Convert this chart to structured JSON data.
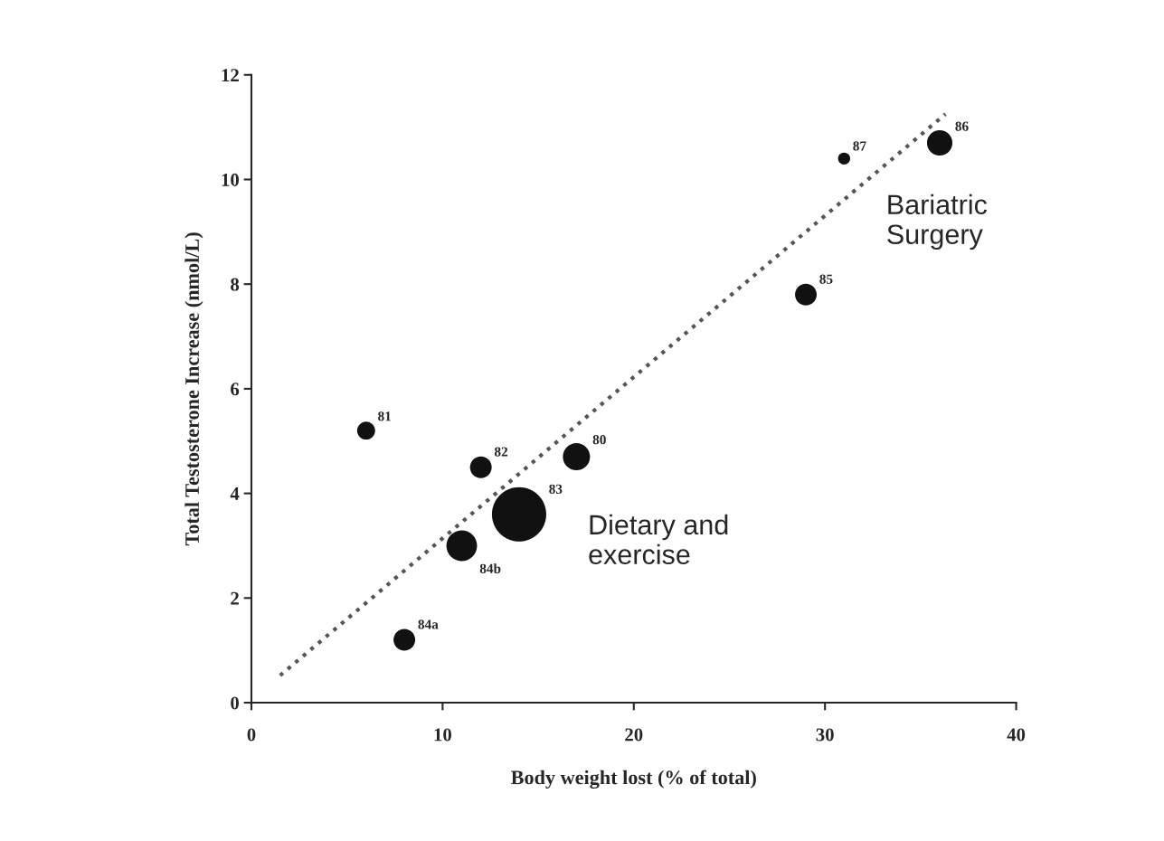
{
  "chart_data": {
    "type": "bubble",
    "xlabel": "Body weight lost (% of total)",
    "ylabel": "Total Testosterone Increase (nmol/L)",
    "xlim": [
      0,
      40
    ],
    "ylim": [
      0,
      12
    ],
    "xticks": [
      0,
      10,
      20,
      30,
      40
    ],
    "yticks": [
      0,
      2,
      4,
      6,
      8,
      10,
      12
    ],
    "grid": false,
    "legend": false,
    "series": [
      {
        "color": "#111111",
        "x": [
          6,
          12,
          17,
          14,
          11,
          8,
          29,
          31,
          36
        ],
        "values": [
          5.2,
          4.5,
          4.7,
          3.6,
          3.0,
          1.2,
          7.8,
          10.4,
          10.7
        ],
        "sizes": [
          0.11,
          0.16,
          0.25,
          1,
          0.32,
          0.16,
          0.16,
          0.05,
          0.22
        ]
      },
      {
        "type": "line",
        "color": "#555555",
        "line_style": "dotted",
        "x": [
          1.5,
          36.3
        ],
        "values": [
          0.52,
          11.25
        ]
      }
    ],
    "annotations": [
      {
        "text": "81",
        "x": 6,
        "y": 5.2
      },
      {
        "text": "82",
        "x": 12,
        "y": 4.5
      },
      {
        "text": "80",
        "x": 17,
        "y": 4.7
      },
      {
        "text": "83",
        "x": 14,
        "y": 3.6
      },
      {
        "text": "84b",
        "x": 11,
        "y": 3.0
      },
      {
        "text": "84a",
        "x": 8,
        "y": 1.2
      },
      {
        "text": "85",
        "x": 29,
        "y": 7.8
      },
      {
        "text": "87",
        "x": 31,
        "y": 10.4
      },
      {
        "text": "86",
        "x": 36,
        "y": 10.7
      },
      "Dietary and\nexercise",
      "Bariatric\nSurgery"
    ]
  }
}
